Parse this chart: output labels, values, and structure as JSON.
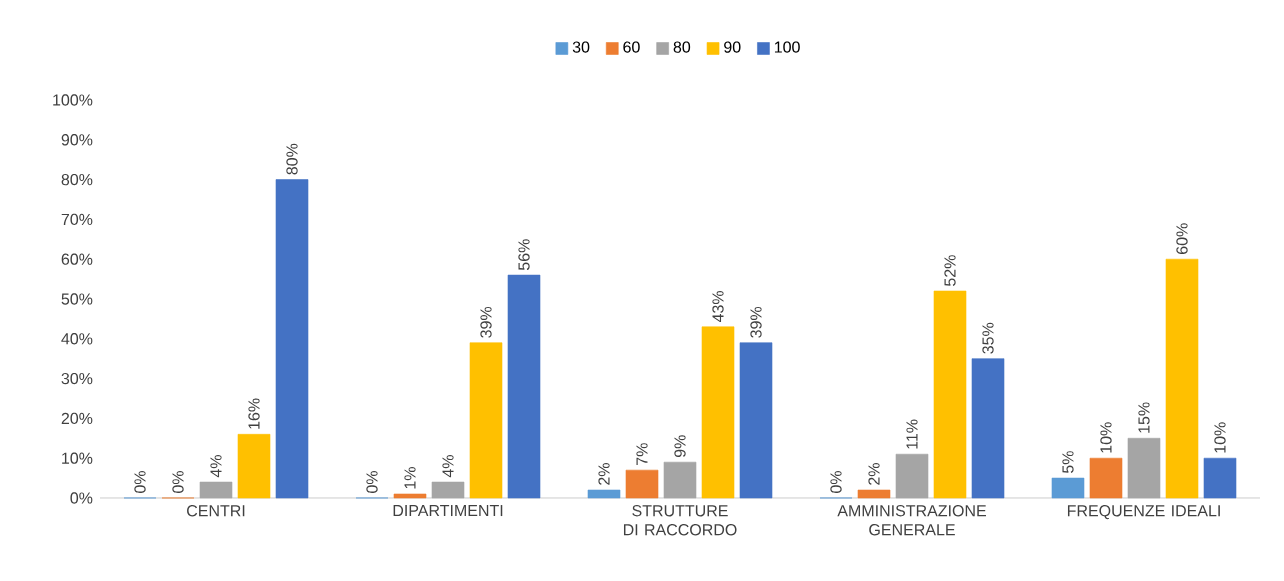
{
  "chart_data": {
    "type": "bar",
    "categories": [
      "CENTRI",
      "DIPARTIMENTI",
      "STRUTTURE DI RACCORDO",
      "AMMINISTRAZIONE GENERALE",
      "FREQUENZE IDEALI"
    ],
    "series": [
      {
        "name": "30",
        "color": "#5b9bd5",
        "values": [
          0,
          0,
          2,
          0,
          5
        ],
        "value_labels": [
          "0%",
          "0%",
          "2%",
          "0%",
          "5%"
        ]
      },
      {
        "name": "60",
        "color": "#ed7d31",
        "values": [
          0,
          1,
          7,
          2,
          10
        ],
        "value_labels": [
          "0%",
          "1%",
          "7%",
          "2%",
          "10%"
        ]
      },
      {
        "name": "80",
        "color": "#a5a5a5",
        "values": [
          4,
          4,
          9,
          11,
          15
        ],
        "value_labels": [
          "4%",
          "4%",
          "9%",
          "11%",
          "15%"
        ]
      },
      {
        "name": "90",
        "color": "#ffc000",
        "values": [
          16,
          39,
          43,
          52,
          60
        ],
        "value_labels": [
          "16%",
          "39%",
          "43%",
          "52%",
          "60%"
        ]
      },
      {
        "name": "100",
        "color": "#4472c4",
        "values": [
          80,
          56,
          39,
          35,
          10
        ],
        "value_labels": [
          "80%",
          "56%",
          "39%",
          "35%",
          "10%"
        ]
      }
    ],
    "ylim": [
      0,
      100
    ],
    "yticks": [
      {
        "value": 0,
        "label": "0%"
      },
      {
        "value": 10,
        "label": "10%"
      },
      {
        "value": 20,
        "label": "20%"
      },
      {
        "value": 30,
        "label": "30%"
      },
      {
        "value": 40,
        "label": "40%"
      },
      {
        "value": 50,
        "label": "50%"
      },
      {
        "value": 60,
        "label": "60%"
      },
      {
        "value": 70,
        "label": "70%"
      },
      {
        "value": 80,
        "label": "80%"
      },
      {
        "value": 90,
        "label": "90%"
      },
      {
        "value": 100,
        "label": "100%"
      }
    ],
    "legend": "top",
    "grid": false
  }
}
